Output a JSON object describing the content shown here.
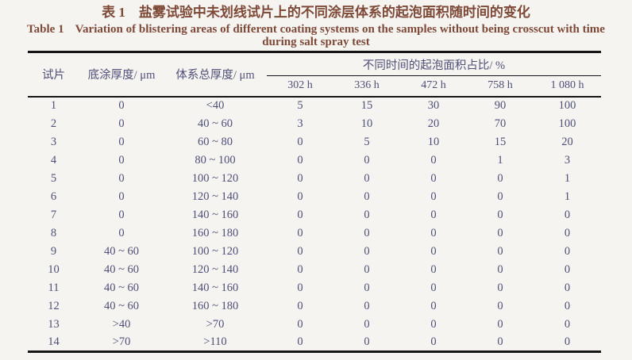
{
  "meta": {
    "bg_color": "#f5f4f1",
    "caption_color": "#7e4937",
    "table_text_color": "#4f4f78",
    "rule_color": "#151515"
  },
  "caption": {
    "zh": "表 1　盐雾试验中未划线试片上的不同涂层体系的起泡面积随时间的变化",
    "en_label": "Table 1",
    "en_line1": "Variation of blistering areas of different coating systems on the samples without being crosscut with time",
    "en_line2": "during salt spray test"
  },
  "table": {
    "headers": {
      "sample": "试片",
      "primer": "底涂厚度/ μm",
      "total": "体系总厚度/ μm",
      "group": "不同时间的起泡面积占比/ %",
      "times": [
        "302 h",
        "336 h",
        "472 h",
        "758 h",
        "1 080 h"
      ]
    },
    "column_names": [
      "sample-cell",
      "primer-thickness-cell",
      "total-thickness-cell",
      "value-302h-cell",
      "value-336h-cell",
      "value-472h-cell",
      "value-758h-cell",
      "value-1080h-cell"
    ],
    "rows": [
      [
        "1",
        "0",
        "<40",
        "5",
        "15",
        "30",
        "90",
        "100"
      ],
      [
        "2",
        "0",
        "40 ~ 60",
        "3",
        "10",
        "20",
        "70",
        "100"
      ],
      [
        "3",
        "0",
        "60 ~ 80",
        "0",
        "5",
        "10",
        "15",
        "20"
      ],
      [
        "4",
        "0",
        "80 ~ 100",
        "0",
        "0",
        "0",
        "1",
        "3"
      ],
      [
        "5",
        "0",
        "100 ~ 120",
        "0",
        "0",
        "0",
        "0",
        "1"
      ],
      [
        "6",
        "0",
        "120 ~ 140",
        "0",
        "0",
        "0",
        "0",
        "1"
      ],
      [
        "7",
        "0",
        "140 ~ 160",
        "0",
        "0",
        "0",
        "0",
        "0"
      ],
      [
        "8",
        "0",
        "160 ~ 180",
        "0",
        "0",
        "0",
        "0",
        "0"
      ],
      [
        "9",
        "40 ~ 60",
        "100 ~ 120",
        "0",
        "0",
        "0",
        "0",
        "0"
      ],
      [
        "10",
        "40 ~ 60",
        "120 ~ 140",
        "0",
        "0",
        "0",
        "0",
        "0"
      ],
      [
        "11",
        "40 ~ 60",
        "140 ~ 160",
        "0",
        "0",
        "0",
        "0",
        "0"
      ],
      [
        "12",
        "40 ~ 60",
        "160 ~ 180",
        "0",
        "0",
        "0",
        "0",
        "0"
      ],
      [
        "13",
        ">40",
        ">70",
        "0",
        "0",
        "0",
        "0",
        "0"
      ],
      [
        "14",
        ">70",
        ">110",
        "0",
        "0",
        "0",
        "0",
        "0"
      ]
    ]
  }
}
